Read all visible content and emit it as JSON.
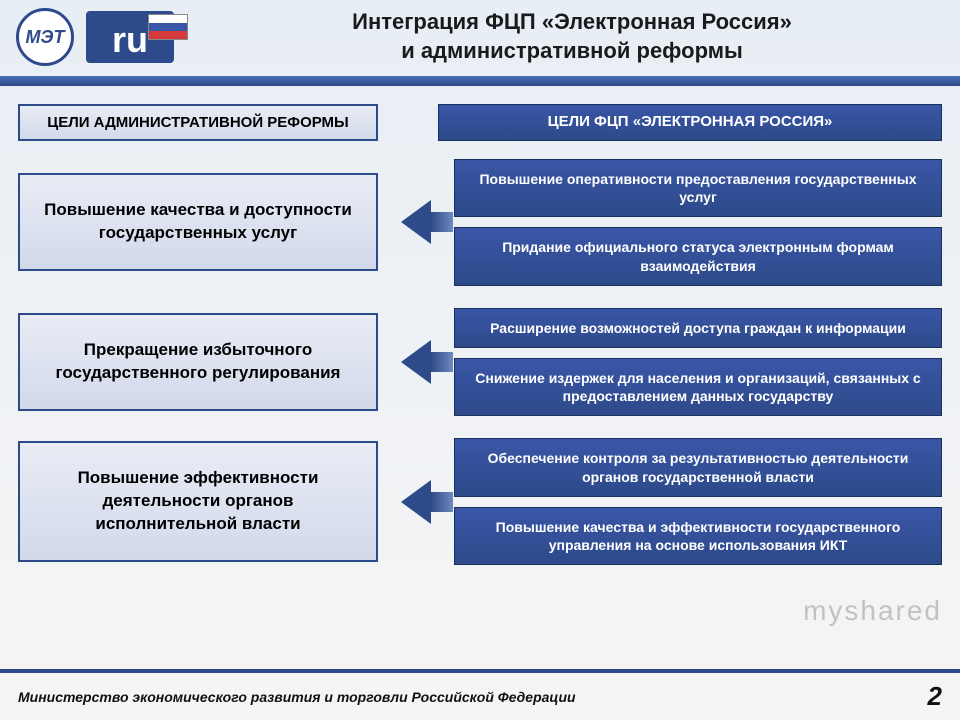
{
  "title_line1": "Интеграция ФЦП «Электронная Россия»",
  "title_line2": "и административной реформы",
  "logo_met": "МЭТ",
  "logo_ru": "ru",
  "col_header_left": "ЦЕЛИ АДМИНИСТРАТИВНОЙ РЕФОРМЫ",
  "col_header_right": "ЦЕЛИ ФЦП «ЭЛЕКТРОННАЯ РОССИЯ»",
  "rows": [
    {
      "left": "Повышение качества и доступности государственных услуг",
      "right": [
        "Повышение оперативности предоставления государственных услуг",
        "Придание официального статуса электронным формам взаимодействия"
      ]
    },
    {
      "left": "Прекращение избыточного государственного регулирования",
      "right": [
        "Расширение возможностей доступа граждан к информации",
        "Снижение издержек для населения и организаций, связанных с предоставлением данных государству"
      ]
    },
    {
      "left": "Повышение эффективности деятельности органов исполнительной власти",
      "right": [
        "Обеспечение контроля за результативностью деятельности органов государственной власти",
        "Повышение качества и эффективности государственного управления на основе использования ИКТ"
      ]
    }
  ],
  "footer_text": "Министерство экономического развития и торговли Российской Федерации",
  "page_number": "2",
  "watermark": "myshared",
  "colors": {
    "primary_blue": "#2d4a8a",
    "gradient_blue_light": "#3a56a7",
    "left_box_bg_top": "#e8ecf5",
    "left_box_bg_bottom": "#d2d9ea",
    "page_bg": "#f5f5f5"
  },
  "fonts": {
    "title_size": 22,
    "header_size": 15,
    "left_box_size": 17,
    "right_box_size": 14,
    "footer_size": 14
  },
  "layout": {
    "left_col_width": 360,
    "arrow_col_width": 56,
    "row_gap": 22
  }
}
